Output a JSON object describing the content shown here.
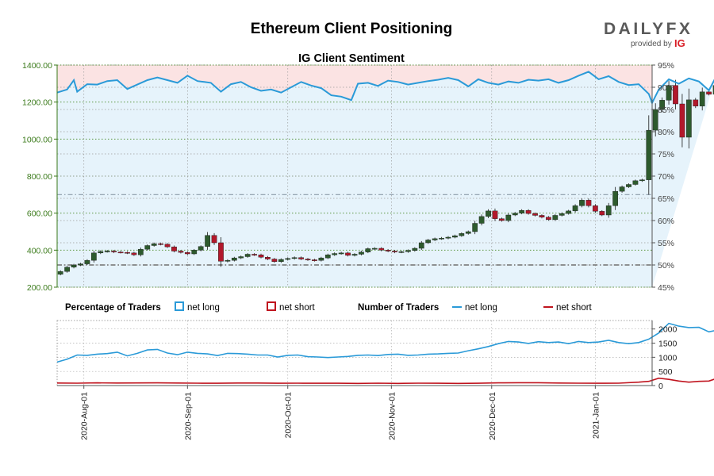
{
  "chart_data": {
    "type": "line",
    "title": "Ethereum Client Positioning",
    "subtitle": "IG Client Sentiment",
    "brand": {
      "main": "DAILYFX",
      "provided_by": "provided by",
      "ig": "IG"
    },
    "colors": {
      "net_long": "#2a9ad8",
      "net_short": "#c0141e",
      "candle_up": "#2d5a2d",
      "candle_down": "#b2182b",
      "long_zone": "#e6f3fb",
      "short_zone": "#fbe3e3",
      "left_axis": "#3a7a1a",
      "brand_red": "#d91e26"
    },
    "x_ticks": [
      "2020-Aug-01",
      "2020-Sep-01",
      "2020-Oct-01",
      "2020-Nov-01",
      "2020-Dec-01",
      "2021-Jan-01"
    ],
    "x_range": [
      "2020-07-24",
      "2021-01-18"
    ],
    "price_axis": {
      "ticks": [
        "1400.00",
        "1200.00",
        "1000.00",
        "800.00",
        "600.00",
        "400.00",
        "200.00"
      ],
      "ylim": [
        200,
        1400
      ]
    },
    "pct_axis": {
      "ticks": [
        "95%",
        "90%",
        "85%",
        "80%",
        "75%",
        "70%",
        "65%",
        "60%",
        "55%",
        "50%",
        "45%"
      ],
      "ylim": [
        45,
        95
      ]
    },
    "count_axis": {
      "ticks": [
        "2000",
        "1500",
        "1000",
        "500",
        "0"
      ],
      "ylim": [
        0,
        2300
      ]
    },
    "reference_lines": {
      "price": 700,
      "percent": 50
    },
    "legend": {
      "pct_title": "Percentage of Traders",
      "pct_long": "net long",
      "pct_short": "net short",
      "num_title": "Number of Traders",
      "num_long": "net long",
      "num_short": "net short"
    },
    "price_close": [
      [
        1,
        285
      ],
      [
        3,
        308
      ],
      [
        5,
        320
      ],
      [
        7,
        326
      ],
      [
        9,
        345
      ],
      [
        11,
        385
      ],
      [
        13,
        393
      ],
      [
        15,
        395
      ],
      [
        17,
        390
      ],
      [
        19,
        388
      ],
      [
        21,
        385
      ],
      [
        23,
        375
      ],
      [
        25,
        405
      ],
      [
        27,
        425
      ],
      [
        29,
        435
      ],
      [
        31,
        432
      ],
      [
        33,
        418
      ],
      [
        35,
        395
      ],
      [
        37,
        388
      ],
      [
        39,
        380
      ],
      [
        41,
        400
      ],
      [
        43,
        420
      ],
      [
        45,
        480
      ],
      [
        47,
        440
      ],
      [
        49,
        340
      ],
      [
        51,
        345
      ],
      [
        53,
        358
      ],
      [
        55,
        365
      ],
      [
        57,
        378
      ],
      [
        59,
        375
      ],
      [
        61,
        362
      ],
      [
        63,
        352
      ],
      [
        65,
        338
      ],
      [
        67,
        350
      ],
      [
        69,
        355
      ],
      [
        71,
        360
      ],
      [
        73,
        352
      ],
      [
        75,
        348
      ],
      [
        77,
        345
      ],
      [
        79,
        358
      ],
      [
        81,
        375
      ],
      [
        83,
        382
      ],
      [
        85,
        385
      ],
      [
        87,
        372
      ],
      [
        89,
        378
      ],
      [
        91,
        390
      ],
      [
        93,
        408
      ],
      [
        95,
        410
      ],
      [
        97,
        400
      ],
      [
        99,
        395
      ],
      [
        101,
        390
      ],
      [
        103,
        392
      ],
      [
        105,
        398
      ],
      [
        107,
        410
      ],
      [
        109,
        440
      ],
      [
        111,
        455
      ],
      [
        113,
        462
      ],
      [
        115,
        465
      ],
      [
        117,
        470
      ],
      [
        119,
        478
      ],
      [
        121,
        490
      ],
      [
        123,
        500
      ],
      [
        125,
        545
      ],
      [
        127,
        582
      ],
      [
        129,
        612
      ],
      [
        131,
        570
      ],
      [
        133,
        560
      ],
      [
        135,
        590
      ],
      [
        137,
        600
      ],
      [
        139,
        615
      ],
      [
        141,
        598
      ],
      [
        143,
        588
      ],
      [
        145,
        578
      ],
      [
        147,
        565
      ],
      [
        149,
        588
      ],
      [
        151,
        598
      ],
      [
        153,
        612
      ],
      [
        155,
        640
      ],
      [
        157,
        670
      ],
      [
        159,
        640
      ],
      [
        161,
        610
      ],
      [
        163,
        590
      ],
      [
        165,
        640
      ],
      [
        167,
        718
      ],
      [
        169,
        742
      ],
      [
        171,
        755
      ],
      [
        173,
        775
      ],
      [
        175,
        780
      ],
      [
        177,
        1048
      ],
      [
        179,
        1160
      ],
      [
        181,
        1210
      ],
      [
        183,
        1290
      ],
      [
        185,
        1190
      ],
      [
        187,
        1010
      ],
      [
        189,
        1212
      ],
      [
        191,
        1178
      ],
      [
        193,
        1255
      ],
      [
        195,
        1242
      ],
      [
        197,
        1290
      ]
    ],
    "pct_long": [
      [
        0,
        88.8
      ],
      [
        3,
        89.5
      ],
      [
        5,
        91.6
      ],
      [
        6,
        89.0
      ],
      [
        9,
        90.7
      ],
      [
        12,
        90.6
      ],
      [
        15,
        91.4
      ],
      [
        18,
        91.6
      ],
      [
        21,
        89.6
      ],
      [
        24,
        90.6
      ],
      [
        27,
        91.6
      ],
      [
        30,
        92.2
      ],
      [
        33,
        91.6
      ],
      [
        36,
        91.0
      ],
      [
        39,
        92.6
      ],
      [
        42,
        91.4
      ],
      [
        44,
        91.2
      ],
      [
        46,
        91.0
      ],
      [
        49,
        89.0
      ],
      [
        52,
        90.7
      ],
      [
        55,
        91.2
      ],
      [
        58,
        90.0
      ],
      [
        61,
        89.2
      ],
      [
        64,
        89.5
      ],
      [
        67,
        88.8
      ],
      [
        70,
        90.0
      ],
      [
        73,
        91.2
      ],
      [
        76,
        90.4
      ],
      [
        79,
        89.8
      ],
      [
        82,
        88.2
      ],
      [
        85,
        87.9
      ],
      [
        88,
        87.1
      ],
      [
        90,
        90.8
      ],
      [
        93,
        91.0
      ],
      [
        96,
        90.3
      ],
      [
        99,
        91.5
      ],
      [
        102,
        91.2
      ],
      [
        105,
        90.6
      ],
      [
        108,
        91.0
      ],
      [
        111,
        91.4
      ],
      [
        114,
        91.7
      ],
      [
        117,
        92.1
      ],
      [
        120,
        91.6
      ],
      [
        123,
        90.2
      ],
      [
        126,
        91.8
      ],
      [
        129,
        91.0
      ],
      [
        132,
        90.6
      ],
      [
        135,
        91.3
      ],
      [
        138,
        91.0
      ],
      [
        141,
        91.7
      ],
      [
        144,
        91.5
      ],
      [
        147,
        91.8
      ],
      [
        150,
        91.0
      ],
      [
        153,
        91.6
      ],
      [
        156,
        92.6
      ],
      [
        159,
        93.5
      ],
      [
        162,
        91.8
      ],
      [
        165,
        92.5
      ],
      [
        168,
        91.2
      ],
      [
        171,
        90.5
      ],
      [
        174,
        90.7
      ],
      [
        177,
        88.5
      ],
      [
        178,
        86.5
      ],
      [
        180,
        89.5
      ],
      [
        183,
        91.8
      ],
      [
        186,
        90.8
      ],
      [
        189,
        92.0
      ],
      [
        192,
        91.3
      ],
      [
        195,
        89.3
      ],
      [
        197,
        92.2
      ]
    ],
    "num_long": [
      [
        0,
        830
      ],
      [
        3,
        930
      ],
      [
        6,
        1080
      ],
      [
        9,
        1070
      ],
      [
        12,
        1110
      ],
      [
        15,
        1130
      ],
      [
        18,
        1180
      ],
      [
        21,
        1050
      ],
      [
        24,
        1140
      ],
      [
        27,
        1260
      ],
      [
        30,
        1280
      ],
      [
        33,
        1150
      ],
      [
        36,
        1090
      ],
      [
        39,
        1180
      ],
      [
        42,
        1140
      ],
      [
        45,
        1120
      ],
      [
        48,
        1060
      ],
      [
        51,
        1140
      ],
      [
        54,
        1130
      ],
      [
        57,
        1110
      ],
      [
        60,
        1080
      ],
      [
        63,
        1080
      ],
      [
        66,
        1010
      ],
      [
        69,
        1070
      ],
      [
        72,
        1080
      ],
      [
        75,
        1020
      ],
      [
        78,
        1010
      ],
      [
        81,
        990
      ],
      [
        84,
        1010
      ],
      [
        87,
        1030
      ],
      [
        90,
        1070
      ],
      [
        93,
        1080
      ],
      [
        96,
        1060
      ],
      [
        99,
        1100
      ],
      [
        102,
        1110
      ],
      [
        105,
        1070
      ],
      [
        108,
        1080
      ],
      [
        111,
        1110
      ],
      [
        114,
        1120
      ],
      [
        117,
        1140
      ],
      [
        120,
        1150
      ],
      [
        123,
        1230
      ],
      [
        126,
        1300
      ],
      [
        129,
        1380
      ],
      [
        132,
        1480
      ],
      [
        135,
        1560
      ],
      [
        138,
        1540
      ],
      [
        141,
        1490
      ],
      [
        144,
        1550
      ],
      [
        147,
        1520
      ],
      [
        150,
        1540
      ],
      [
        153,
        1480
      ],
      [
        156,
        1560
      ],
      [
        159,
        1520
      ],
      [
        162,
        1540
      ],
      [
        165,
        1600
      ],
      [
        168,
        1520
      ],
      [
        171,
        1480
      ],
      [
        174,
        1520
      ],
      [
        177,
        1640
      ],
      [
        180,
        1860
      ],
      [
        183,
        2200
      ],
      [
        186,
        2100
      ],
      [
        189,
        2050
      ],
      [
        192,
        2060
      ],
      [
        195,
        1900
      ],
      [
        197,
        1950
      ]
    ],
    "num_short": [
      [
        0,
        90
      ],
      [
        6,
        85
      ],
      [
        12,
        95
      ],
      [
        18,
        90
      ],
      [
        24,
        92
      ],
      [
        30,
        95
      ],
      [
        36,
        90
      ],
      [
        42,
        85
      ],
      [
        48,
        80
      ],
      [
        54,
        90
      ],
      [
        60,
        90
      ],
      [
        66,
        80
      ],
      [
        72,
        85
      ],
      [
        78,
        80
      ],
      [
        84,
        80
      ],
      [
        90,
        75
      ],
      [
        96,
        85
      ],
      [
        102,
        75
      ],
      [
        108,
        85
      ],
      [
        114,
        80
      ],
      [
        120,
        75
      ],
      [
        126,
        80
      ],
      [
        132,
        95
      ],
      [
        138,
        100
      ],
      [
        144,
        100
      ],
      [
        150,
        90
      ],
      [
        156,
        85
      ],
      [
        162,
        80
      ],
      [
        168,
        85
      ],
      [
        174,
        120
      ],
      [
        177,
        150
      ],
      [
        180,
        260
      ],
      [
        183,
        220
      ],
      [
        186,
        160
      ],
      [
        189,
        120
      ],
      [
        192,
        150
      ],
      [
        195,
        160
      ],
      [
        197,
        240
      ]
    ]
  }
}
